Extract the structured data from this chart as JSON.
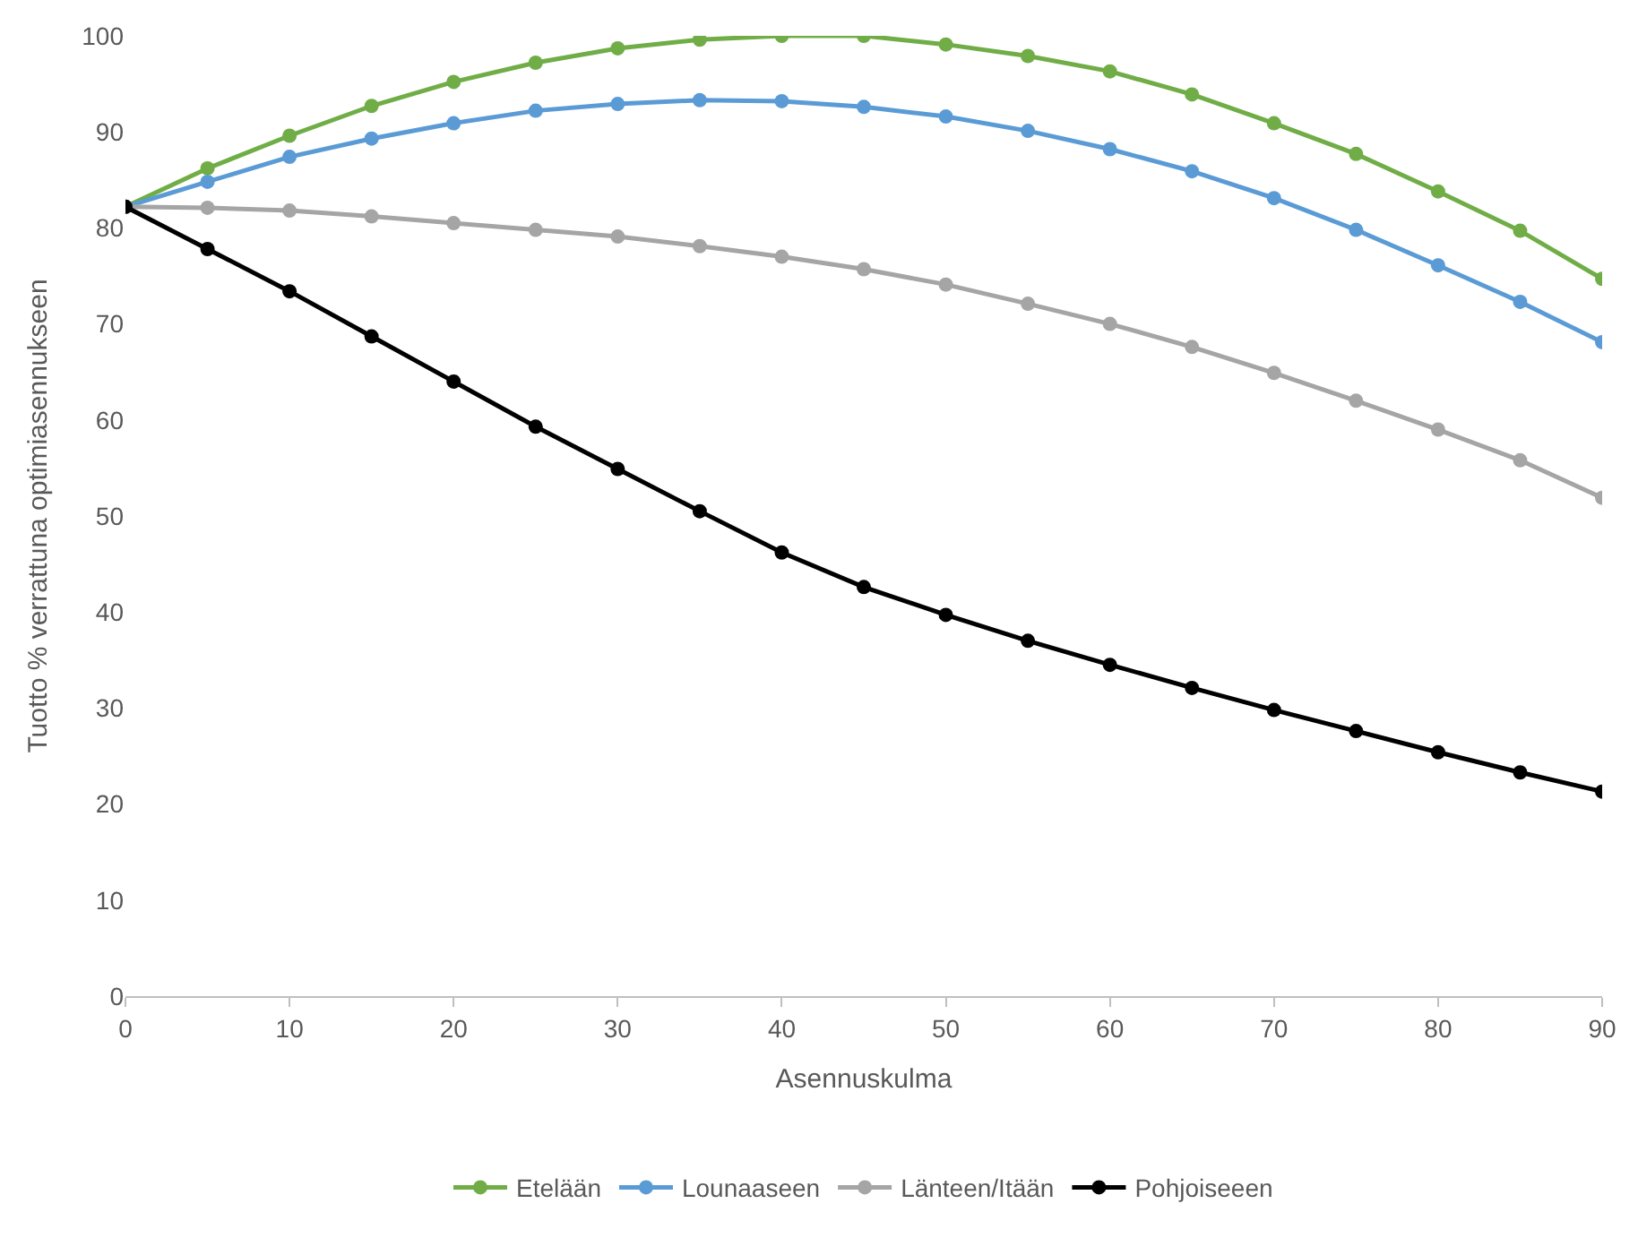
{
  "chart_data": {
    "type": "line",
    "xlabel": "Asennuskulma",
    "ylabel": "Tuotto % verrattuna optimiasennukseen",
    "x": [
      0,
      5,
      10,
      15,
      20,
      25,
      30,
      35,
      40,
      45,
      50,
      55,
      60,
      65,
      70,
      75,
      80,
      85,
      90
    ],
    "series": [
      {
        "name": "Etelään",
        "color": "#70ad47",
        "values": [
          82.2,
          86.2,
          89.6,
          92.7,
          95.2,
          97.2,
          98.7,
          99.6,
          100,
          100,
          99.1,
          97.9,
          96.3,
          93.9,
          90.9,
          87.7,
          83.8,
          79.7,
          74.7
        ]
      },
      {
        "name": "Lounaaseen",
        "color": "#5b9bd5",
        "values": [
          82.2,
          84.8,
          87.4,
          89.3,
          90.9,
          92.2,
          92.9,
          93.3,
          93.2,
          92.6,
          91.6,
          90.1,
          88.2,
          85.9,
          83.1,
          79.8,
          76.1,
          72.3,
          68.1
        ]
      },
      {
        "name": "Länteen/Itään",
        "color": "#a5a5a5",
        "values": [
          82.2,
          82.1,
          81.8,
          81.2,
          80.5,
          79.8,
          79.1,
          78.1,
          77.0,
          75.7,
          74.1,
          72.1,
          70.0,
          67.6,
          64.9,
          62.0,
          59.0,
          55.8,
          51.9
        ]
      },
      {
        "name": "Pohjoiseeen",
        "color": "#000000",
        "values": [
          82.2,
          77.8,
          73.4,
          68.7,
          64.0,
          59.3,
          54.9,
          50.5,
          46.2,
          42.6,
          39.7,
          37.0,
          34.5,
          32.1,
          29.8,
          27.6,
          25.4,
          23.3,
          21.3
        ]
      }
    ],
    "xlim": [
      0,
      90
    ],
    "xticks": [
      0,
      10,
      20,
      30,
      40,
      50,
      60,
      70,
      80,
      90
    ],
    "ylim": [
      0,
      100
    ],
    "yticks": [
      0,
      10,
      20,
      30,
      40,
      50,
      60,
      70,
      80,
      90,
      100
    ],
    "legend": "bottom",
    "marker": "circle",
    "line_style": "solid",
    "grid": false
  }
}
